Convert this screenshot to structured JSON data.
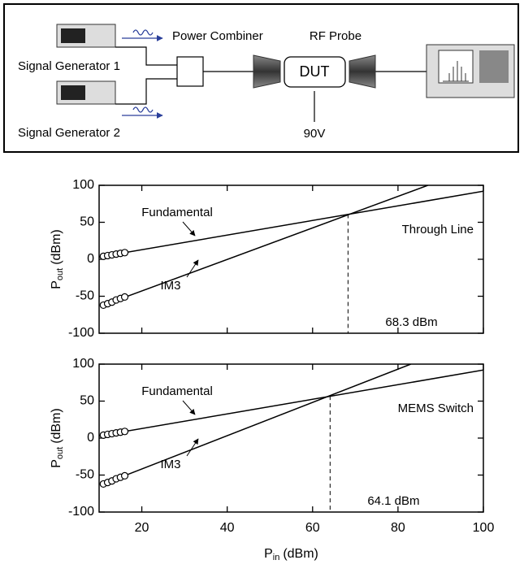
{
  "diagram": {
    "signal_generator_1": "Signal Generator 1",
    "signal_generator_2": "Signal Generator 2",
    "power_combiner": "Power Combiner",
    "rf_probe": "RF Probe",
    "dut": "DUT",
    "bias": "90V"
  },
  "chart_data": [
    {
      "type": "line",
      "ylabel": {
        "main": "P",
        "sub": "out",
        "unit": "(dBm)"
      },
      "xlim": [
        10,
        100
      ],
      "ylim": [
        -100,
        100
      ],
      "xticks": [
        20,
        40,
        60,
        80,
        100
      ],
      "yticks": [
        -100,
        -50,
        0,
        50,
        100
      ],
      "show_xtick_labels": false,
      "series": [
        {
          "name": "Fundamental",
          "color": "#000000",
          "x": [
            10,
            100
          ],
          "values": [
            3,
            92
          ]
        },
        {
          "name": "IM3",
          "color": "#000000",
          "x": [
            11,
            87
          ],
          "values": [
            -62,
            100
          ]
        },
        {
          "color": "#000000",
          "marker": "circle",
          "x": [
            11,
            12,
            13,
            14,
            15,
            16
          ],
          "values": [
            4,
            5,
            6,
            7,
            8,
            9
          ]
        },
        {
          "color": "#000000",
          "marker": "circle",
          "x": [
            11,
            12,
            13,
            14,
            15,
            16
          ],
          "values": [
            -62,
            -60,
            -58,
            -55,
            -53,
            -51
          ]
        }
      ],
      "device": "Through Line",
      "intercept": {
        "x": 68.3,
        "y": 61,
        "label": "68.3 dBm"
      }
    },
    {
      "type": "line",
      "ylabel": {
        "main": "P",
        "sub": "out",
        "unit": "(dBm)"
      },
      "xlabel": {
        "main": "P",
        "sub": "in",
        "unit": "(dBm)"
      },
      "xlim": [
        10,
        100
      ],
      "ylim": [
        -100,
        100
      ],
      "xticks": [
        20,
        40,
        60,
        80,
        100
      ],
      "yticks": [
        -100,
        -50,
        0,
        50,
        100
      ],
      "show_xtick_labels": true,
      "series": [
        {
          "name": "Fundamental",
          "color": "#000000",
          "x": [
            10,
            100
          ],
          "values": [
            3,
            92
          ]
        },
        {
          "name": "IM3",
          "color": "#000000",
          "x": [
            11,
            83
          ],
          "values": [
            -62,
            100
          ]
        },
        {
          "color": "#000000",
          "marker": "circle",
          "x": [
            11,
            12,
            13,
            14,
            15,
            16
          ],
          "values": [
            4,
            5,
            6,
            7,
            8,
            9
          ]
        },
        {
          "color": "#000000",
          "marker": "circle",
          "x": [
            11,
            12,
            13,
            14,
            15,
            16
          ],
          "values": [
            -62,
            -60,
            -58,
            -55,
            -53,
            -51
          ]
        }
      ],
      "device": "MEMS Switch",
      "intercept": {
        "x": 64.1,
        "y": 57,
        "label": "64.1 dBm"
      }
    }
  ]
}
